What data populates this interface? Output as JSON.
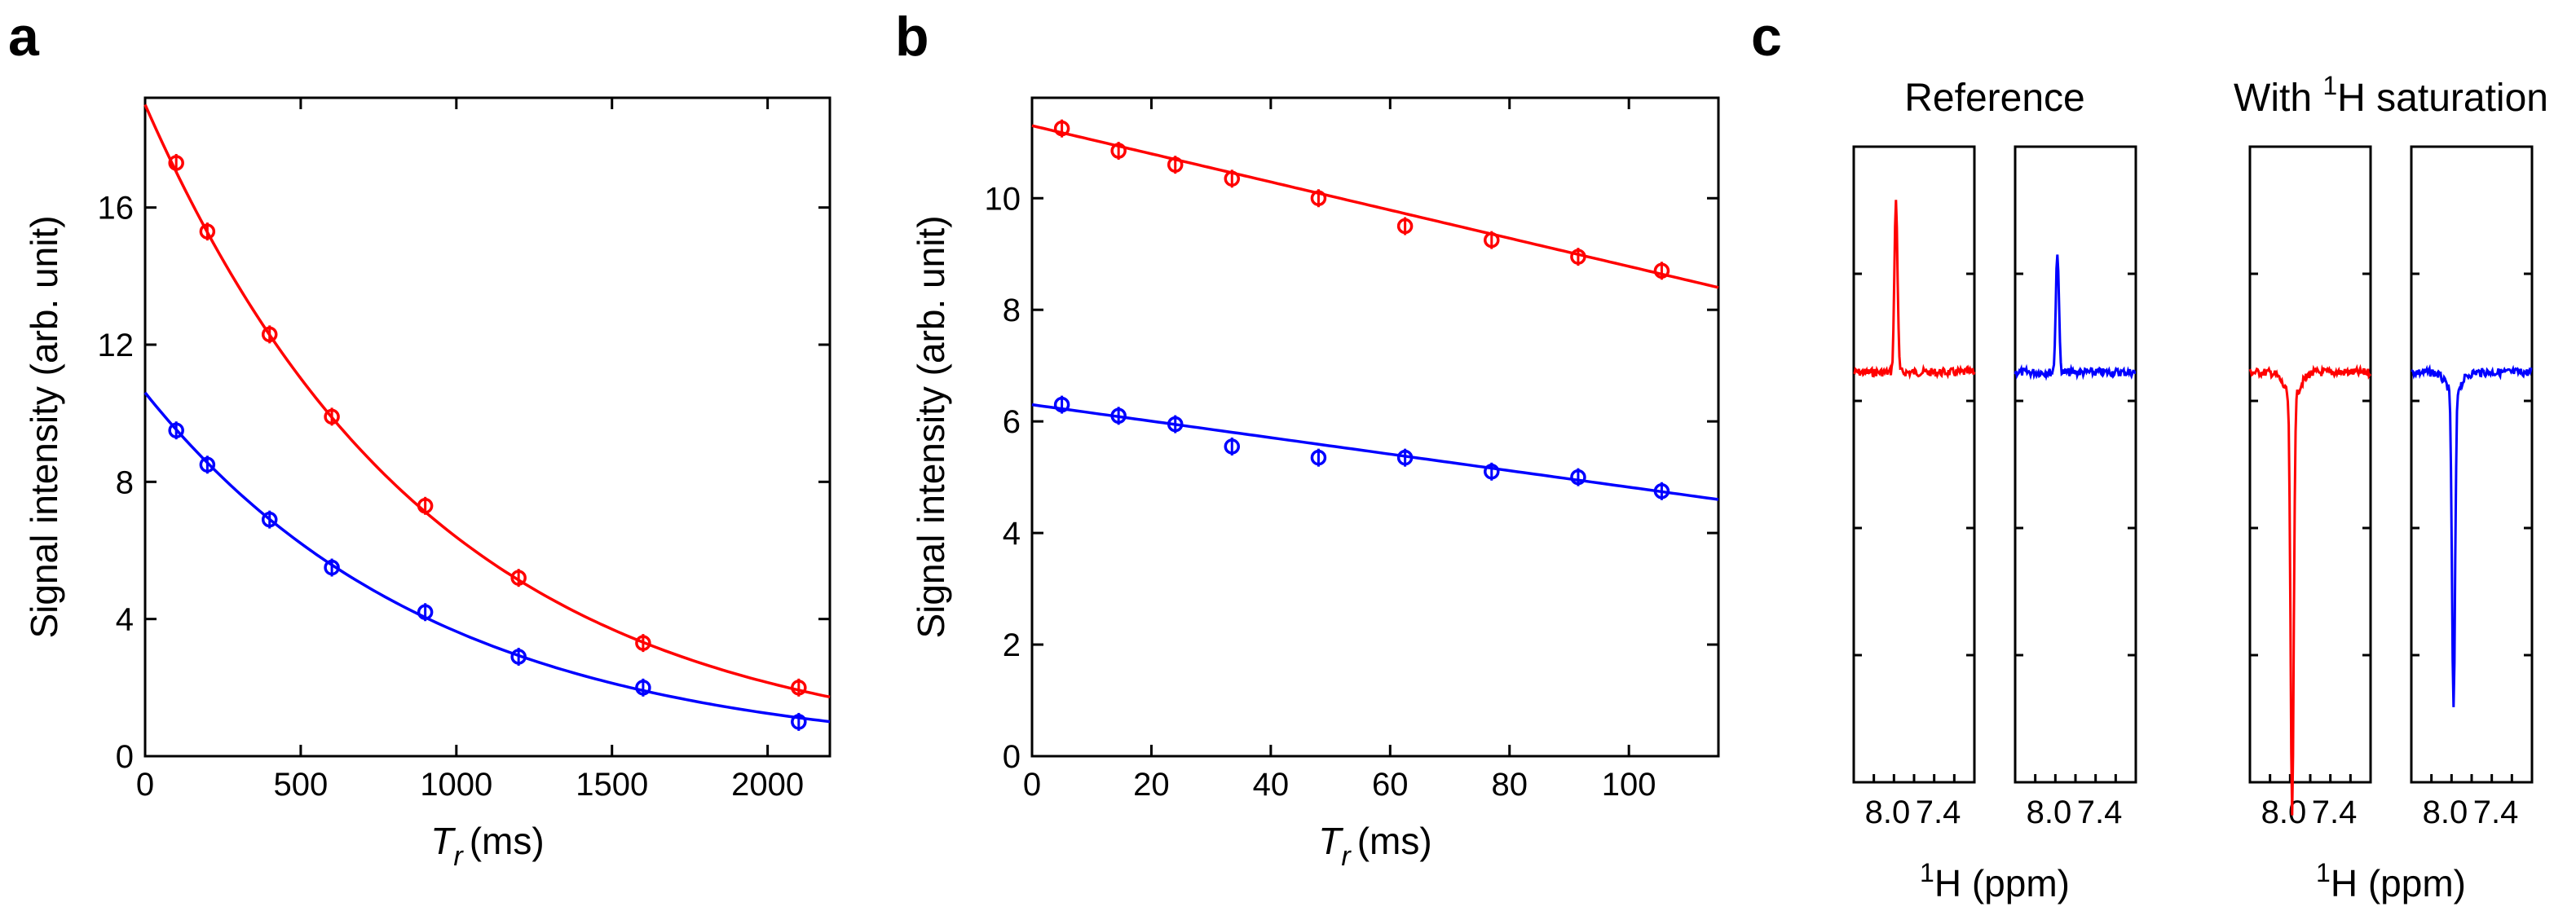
{
  "chart_data": [
    {
      "panel": "a",
      "type": "scatter",
      "xlabel": "T_r (ms)",
      "xlabel_main": "T",
      "xlabel_sub": "r",
      "xlabel_unit": "(ms)",
      "ylabel": "Signal intensity (arb. unit)",
      "xlim": [
        0,
        2200
      ],
      "ylim": [
        0,
        19.2
      ],
      "xticks": [
        0,
        500,
        1000,
        1500,
        2000
      ],
      "yticks": [
        0,
        4,
        8,
        12,
        16
      ],
      "series": [
        {
          "name": "red",
          "color": "#ff0000",
          "x": [
            100,
            200,
            400,
            600,
            900,
            1200,
            1600,
            2100
          ],
          "y": [
            17.3,
            15.3,
            12.3,
            9.9,
            7.3,
            5.2,
            3.3,
            2.0
          ],
          "fit": {
            "model": "exp",
            "a": 19.0,
            "k": 0.00109
          }
        },
        {
          "name": "blue",
          "color": "#0000ff",
          "x": [
            100,
            200,
            400,
            600,
            900,
            1200,
            1600,
            2100
          ],
          "y": [
            9.5,
            8.5,
            6.9,
            5.5,
            4.2,
            2.9,
            2.0,
            1.0
          ],
          "fit": {
            "model": "exp",
            "a": 10.6,
            "k": 0.00107
          }
        }
      ]
    },
    {
      "panel": "b",
      "type": "scatter",
      "xlabel": "T_r (ms)",
      "xlabel_main": "T",
      "xlabel_sub": "r",
      "xlabel_unit": "(ms)",
      "ylabel": "Signal intensity (arb. unit)",
      "xlim": [
        0,
        115
      ],
      "ylim": [
        0,
        11.8
      ],
      "xticks": [
        0,
        20,
        40,
        60,
        80,
        100
      ],
      "yticks": [
        0,
        2,
        4,
        6,
        8,
        10
      ],
      "series": [
        {
          "name": "red",
          "color": "#ff0000",
          "x": [
            5,
            14.5,
            24,
            33.5,
            48,
            62.5,
            77,
            91.5,
            105.5
          ],
          "y": [
            11.25,
            10.85,
            10.6,
            10.35,
            10.0,
            9.5,
            9.25,
            8.95,
            8.7
          ],
          "fit": {
            "model": "line",
            "y0": 11.3,
            "y1": 8.4
          }
        },
        {
          "name": "blue",
          "color": "#0000ff",
          "x": [
            5,
            14.5,
            24,
            33.5,
            48,
            62.5,
            77,
            91.5,
            105.5
          ],
          "y": [
            6.3,
            6.1,
            5.95,
            5.55,
            5.35,
            5.35,
            5.1,
            5.0,
            4.75
          ],
          "fit": {
            "model": "line",
            "y0": 6.3,
            "y1": 4.6
          }
        }
      ]
    },
    {
      "panel": "c",
      "type": "line",
      "group_titles": [
        "Reference",
        "With 1H saturation"
      ],
      "title_ref": "Reference",
      "title_sat_prefix": "With ",
      "title_sat_sup": "1",
      "title_sat_suffix": "H saturation",
      "xticks": [
        "8.0",
        "7.4"
      ],
      "xlabel": "1H (ppm)",
      "xlabel_sup": "1",
      "xlabel_text": "H (ppm)",
      "spectra": [
        {
          "group": "Reference",
          "color": "#ff0000",
          "peak_center": 0.35,
          "peak_height": 0.27
        },
        {
          "group": "Reference",
          "color": "#0000ff",
          "peak_center": 0.35,
          "peak_height": 0.19
        },
        {
          "group": "With 1H saturation",
          "color": "#ff0000",
          "peak_center": 0.35,
          "peak_height": -0.66
        },
        {
          "group": "With 1H saturation",
          "color": "#0000ff",
          "peak_center": 0.35,
          "peak_height": -0.5
        }
      ]
    }
  ],
  "panel_labels": [
    "a",
    "b",
    "c"
  ]
}
